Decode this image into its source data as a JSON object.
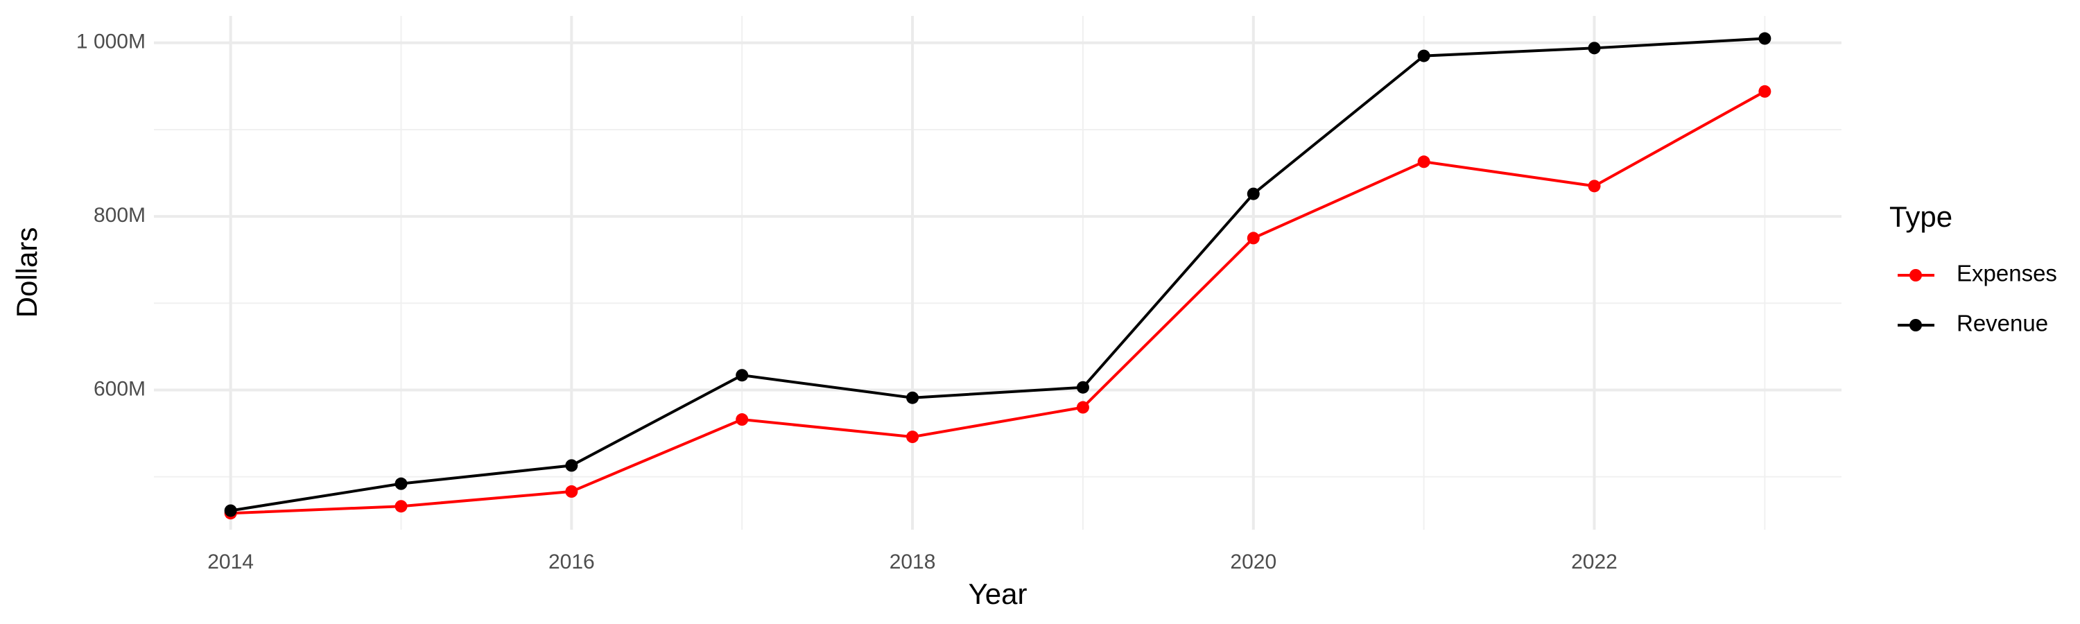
{
  "chart_data": {
    "type": "line",
    "x_label": "Year",
    "y_label": "Dollars",
    "legend_title": "Type",
    "legend_position": "right",
    "grid": true,
    "x": [
      2014,
      2015,
      2016,
      2017,
      2018,
      2019,
      2020,
      2021,
      2022,
      2023
    ],
    "series": [
      {
        "name": "Expenses",
        "color": "#ff0000",
        "values": [
          458000000,
          466000000,
          483000000,
          566000000,
          546000000,
          580000000,
          775000000,
          863000000,
          835000000,
          944000000
        ]
      },
      {
        "name": "Revenue",
        "color": "#000000",
        "values": [
          461000000,
          492000000,
          513000000,
          617000000,
          591000000,
          603000000,
          826000000,
          985000000,
          994000000,
          1005000000
        ]
      }
    ],
    "xlim": [
      2013.55,
      2023.45
    ],
    "xticks": [
      2014,
      2016,
      2018,
      2020,
      2022
    ],
    "x_minor_ticks": [
      2015,
      2017,
      2019,
      2021,
      2023
    ],
    "ylim": [
      439000000,
      1031000000
    ],
    "yticks": [
      {
        "value": 600000000,
        "label": "600M"
      },
      {
        "value": 800000000,
        "label": "800M"
      },
      {
        "value": 1000000000,
        "label": "1 000M"
      }
    ],
    "y_minor_ticks": [
      500000000,
      700000000,
      900000000
    ]
  }
}
